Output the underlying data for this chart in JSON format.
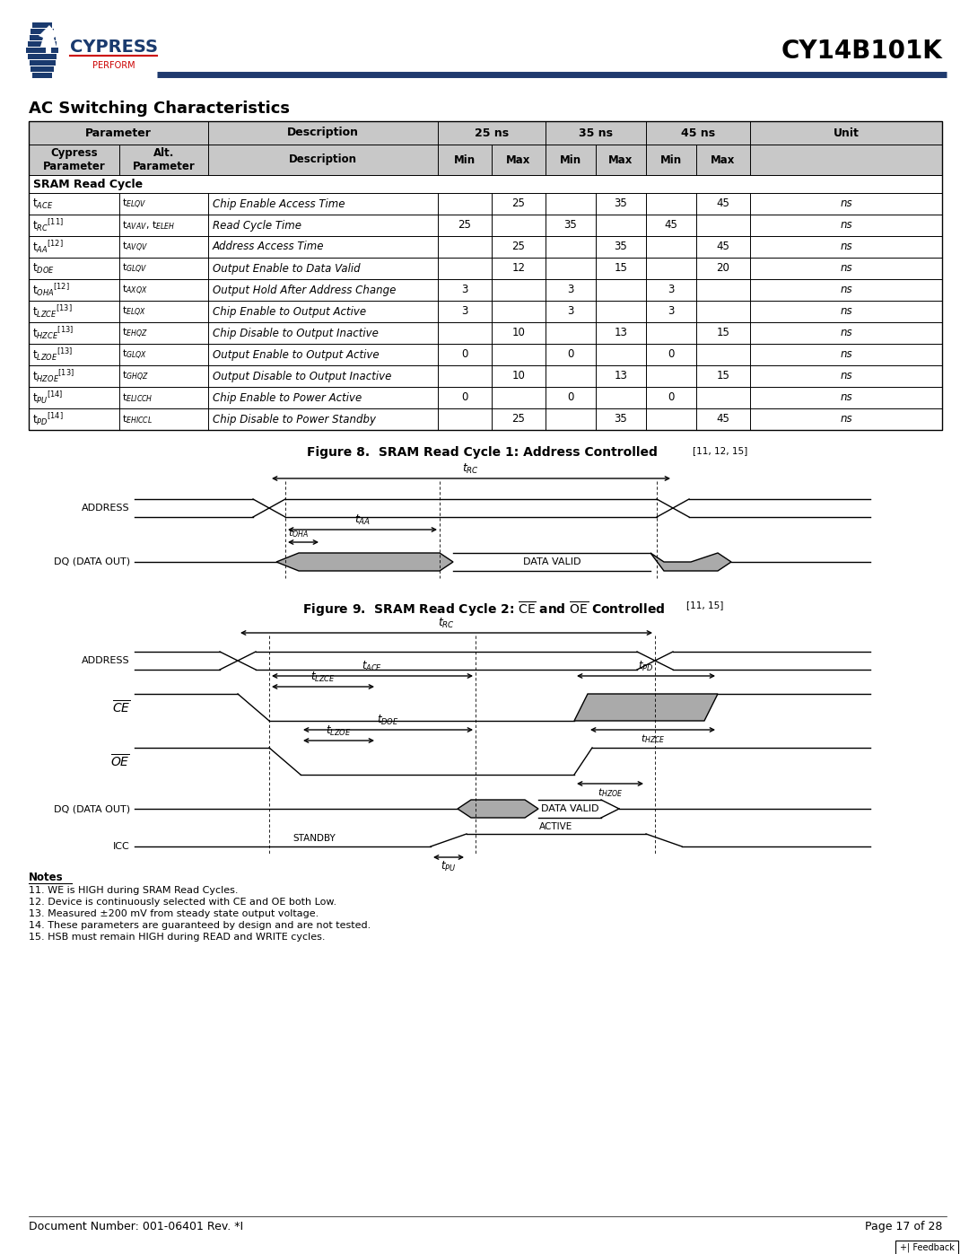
{
  "title": "CY14B101K",
  "section_title": "AC Switching Characteristics",
  "table_gray": "#c8c8c8",
  "blue_line_color": "#1f3a6e",
  "notes": [
    "Notes",
    "11. WE is HIGH during SRAM Read Cycles.",
    "12. Device is continuously selected with CE and OE both Low.",
    "13. Measured ±200 mV from steady state output voltage.",
    "14. These parameters are guaranteed by design and are not tested.",
    "15. HSB must remain HIGH during READ and WRITE cycles."
  ],
  "footer_left": "Document Number: 001-06401 Rev. *I",
  "footer_right": "Page 17 of 28"
}
